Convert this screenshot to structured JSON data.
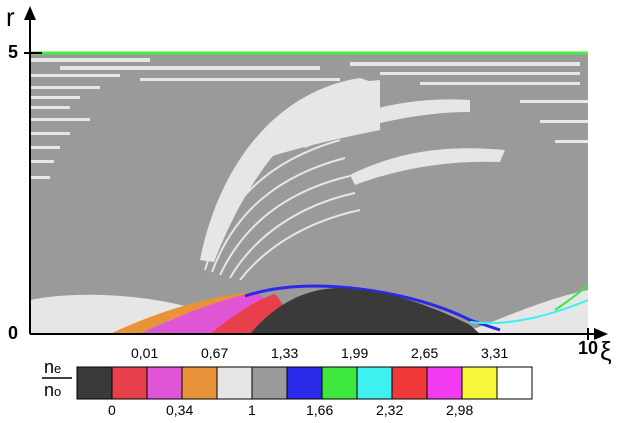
{
  "chart_data": {
    "type": "heatmap",
    "xlabel": "ξ",
    "ylabel": "r",
    "xlim": [
      0,
      10
    ],
    "ylim": [
      0,
      5
    ],
    "x_ticks": [
      "10"
    ],
    "y_ticks": [
      "5",
      "0"
    ],
    "colorbar": {
      "label_numerator": "n",
      "label_numerator_sub": "e",
      "label_denominator": "n",
      "label_denominator_sub": "o",
      "colors": [
        "#3a3a3a",
        "#e8404a",
        "#e055d6",
        "#e8923a",
        "#e6e6e6",
        "#9a9a9a",
        "#2a2ae8",
        "#3ee83e",
        "#3ef0f0",
        "#f03a3a",
        "#f23af0",
        "#f6f63a",
        "#ffffff"
      ],
      "top_labels": [
        "0,01",
        "0,67",
        "1,33",
        "1,99",
        "2,65",
        "3,31"
      ],
      "bottom_labels": [
        "0",
        "0,34",
        "1",
        "1,66",
        "2,32",
        "2,98"
      ]
    },
    "grid": false,
    "legend": "colorbar below plot",
    "top_boundary_color": "#44ee44"
  }
}
